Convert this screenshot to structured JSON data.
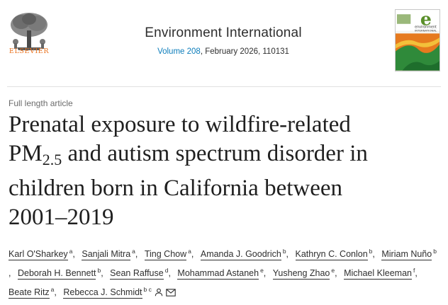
{
  "header": {
    "publisher": "ELSEVIER",
    "journal": "Environment International",
    "volume_link": "Volume 208",
    "issue_rest": ", February 2026, 110131",
    "cover_letter": "e",
    "cover_title_line1": "environment",
    "cover_title_line2": "INTERNATIONAL"
  },
  "article": {
    "type": "Full length article",
    "title_part1": "Prenatal exposure to wildfire-related",
    "title_pm": "PM",
    "title_sub": "2.5",
    "title_part2": " and autism spectrum disorder in",
    "title_part3": "children born in California between",
    "title_part4": "2001–2019"
  },
  "authors": [
    {
      "name": "Karl O'Sharkey",
      "aff": "a"
    },
    {
      "name": "Sanjali Mitra",
      "aff": "a"
    },
    {
      "name": "Ting Chow",
      "aff": "a"
    },
    {
      "name": "Amanda J. Goodrich",
      "aff": "b"
    },
    {
      "name": "Kathryn C. Conlon",
      "aff": "b"
    },
    {
      "name": "Miriam Nuño",
      "aff": "b"
    },
    {
      "name": "Deborah H. Bennett",
      "aff": "b"
    },
    {
      "name": "Sean Raffuse",
      "aff": "d"
    },
    {
      "name": "Mohammad Astaneh",
      "aff": "e"
    },
    {
      "name": "Yusheng Zhao",
      "aff": "e"
    },
    {
      "name": "Michael Kleeman",
      "aff": "f"
    },
    {
      "name": "Beate Ritz",
      "aff": "a"
    },
    {
      "name": "Rebecca J. Schmidt",
      "aff": "b c"
    }
  ],
  "icons": {
    "person": "person-icon",
    "email": "envelope-icon"
  },
  "colors": {
    "elsevier_orange": "#e9711c",
    "link_blue": "#0c7dbb"
  }
}
